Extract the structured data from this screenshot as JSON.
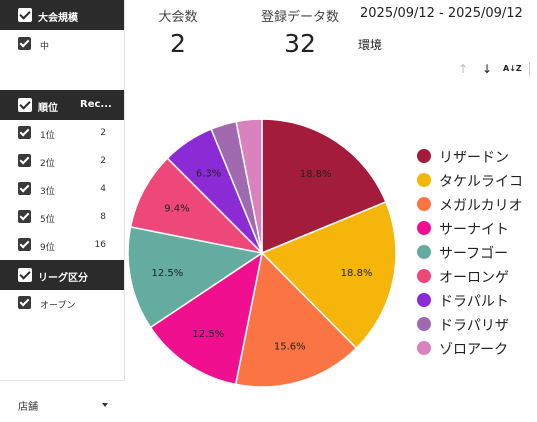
{
  "sidebar": {
    "scale": {
      "title": "大会規模",
      "items": [
        {
          "label": "中"
        }
      ]
    },
    "rank": {
      "title": "順位",
      "col": "Rec...",
      "items": [
        {
          "label": "1位",
          "value": "2"
        },
        {
          "label": "2位",
          "value": "2"
        },
        {
          "label": "3位",
          "value": "4"
        },
        {
          "label": "5位",
          "value": "8"
        },
        {
          "label": "9位",
          "value": "16"
        }
      ]
    },
    "league": {
      "title": "リーグ区分",
      "items": [
        {
          "label": "オープン"
        }
      ]
    },
    "store": {
      "label": "店舗"
    }
  },
  "kpis": {
    "tournaments": {
      "title": "大会数",
      "value": "2"
    },
    "records": {
      "title": "登録データ数",
      "value": "32"
    }
  },
  "date_range": "2025/09/12 - 2025/09/12",
  "env_label": "環境",
  "toolbar": {
    "sort_asc_icon": "arrow-up-icon",
    "sort_desc_icon": "arrow-down-icon",
    "sort_az_icon": "sort-az-icon",
    "az_glyph": "A↓Z"
  },
  "chart_data": {
    "type": "pie",
    "title": "",
    "slices": [
      {
        "label": "リザードン",
        "value": 18.8,
        "display": "18.8%",
        "color": "#a31c3b"
      },
      {
        "label": "タケルライコ",
        "value": 18.8,
        "display": "18.8%",
        "color": "#f5b50a"
      },
      {
        "label": "メガルカリオ",
        "value": 15.6,
        "display": "15.6%",
        "color": "#fa7543"
      },
      {
        "label": "サーナイト",
        "value": 12.5,
        "display": "12.5%",
        "color": "#f00f8f"
      },
      {
        "label": "サーフゴー",
        "value": 12.5,
        "display": "12.5%",
        "color": "#64aba0"
      },
      {
        "label": "オーロンゲ",
        "value": 9.4,
        "display": "9.4%",
        "color": "#ee4779"
      },
      {
        "label": "ドラパルト",
        "value": 6.3,
        "display": "6.3%",
        "color": "#8b2bd6"
      },
      {
        "label": "ドラパリザ",
        "value": 3.1,
        "display": "",
        "color": "#a06ab0"
      },
      {
        "label": "ゾロアーク",
        "value": 3.1,
        "display": "",
        "color": "#d982be"
      }
    ],
    "legend_position": "right"
  }
}
